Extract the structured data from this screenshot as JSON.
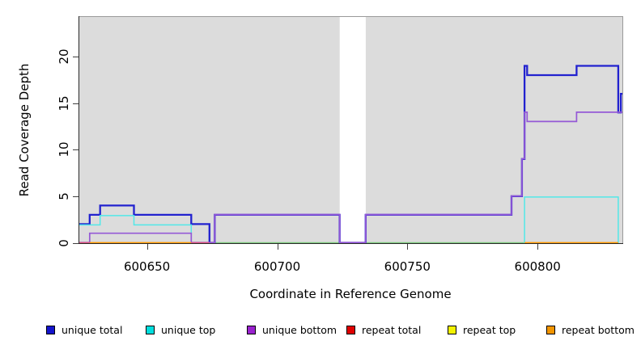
{
  "figure": {
    "background_color": "#ffffff",
    "plot_background_color": "#dcdcdc",
    "gap_band_color": "#ffffff"
  },
  "chart_data": {
    "type": "line",
    "subtype": "step-coverage",
    "title": "",
    "xlabel": "Coordinate in Reference Genome",
    "ylabel": "Read Coverage Depth",
    "xlim": [
      600623.7,
      600832.9
    ],
    "ylim": [
      0,
      24.3
    ],
    "x_ticks": [
      600650,
      600700,
      600750,
      600800
    ],
    "x_tick_labels": [
      "600650",
      "600700",
      "600750",
      "600800"
    ],
    "y_ticks": [
      0,
      5,
      10,
      15,
      20
    ],
    "y_tick_labels": [
      "0",
      "5",
      "10",
      "15",
      "20"
    ],
    "grid": "off",
    "plot_bg": "#dcdcdc",
    "gap_region": {
      "x_start": 600724,
      "x_end": 600734,
      "note": "white vertical band (no reference data)"
    },
    "legend_position": "bottom",
    "legend": [
      {
        "label": "unique total",
        "color": "#1414cc"
      },
      {
        "label": "unique top",
        "color": "#00dede"
      },
      {
        "label": "unique bottom",
        "color": "#9a22cf"
      },
      {
        "label": "repeat total",
        "color": "#e00000"
      },
      {
        "label": "repeat top",
        "color": "#f2f200"
      },
      {
        "label": "repeat bottom",
        "color": "#f29500"
      }
    ],
    "series": [
      {
        "name": "unique total",
        "line_color": "#2222cf",
        "step_points": [
          [
            600624,
            2
          ],
          [
            600628,
            3
          ],
          [
            600632,
            4
          ],
          [
            600645,
            3
          ],
          [
            600667,
            2
          ],
          [
            600674,
            0
          ],
          [
            600676,
            3
          ],
          [
            600724,
            0
          ],
          [
            600734,
            3
          ],
          [
            600790,
            5
          ],
          [
            600794,
            9
          ],
          [
            600795,
            19
          ],
          [
            600796,
            18
          ],
          [
            600815,
            19
          ],
          [
            600831,
            14
          ],
          [
            600832,
            16
          ],
          [
            600833,
            16
          ]
        ],
        "draw_segments": [
          [
            [
              600624,
              2
            ],
            [
              600628,
              3
            ],
            [
              600632,
              4
            ],
            [
              600645,
              3
            ],
            [
              600667,
              2
            ],
            [
              600674,
              0
            ],
            [
              600676,
              3
            ],
            [
              600724,
              0
            ],
            [
              600734,
              3
            ],
            [
              600790,
              5
            ],
            [
              600794,
              9
            ],
            [
              600795,
              19
            ],
            [
              600796,
              18
            ],
            [
              600815,
              19
            ],
            [
              600831,
              14
            ],
            [
              600832,
              16
            ],
            [
              600833,
              16
            ]
          ]
        ]
      },
      {
        "name": "unique top",
        "line_color": "#52e8e8",
        "step_points": [
          [
            600624,
            2
          ],
          [
            600632,
            3
          ],
          [
            600645,
            2
          ],
          [
            600667,
            0
          ],
          [
            600795,
            5
          ],
          [
            600831,
            0
          ],
          [
            600833,
            0
          ]
        ],
        "draw_segments": [
          [
            [
              600624,
              2
            ],
            [
              600632,
              3
            ],
            [
              600645,
              2
            ],
            [
              600667,
              0
            ]
          ],
          [
            [
              600795,
              0
            ],
            [
              600795,
              5
            ],
            [
              600831,
              5
            ],
            [
              600831,
              0
            ]
          ]
        ]
      },
      {
        "name": "unique bottom",
        "line_color": "#9559d6",
        "step_points": [
          [
            600624,
            0
          ],
          [
            600628,
            1
          ],
          [
            600667,
            0
          ],
          [
            600676,
            3
          ],
          [
            600724,
            0
          ],
          [
            600734,
            3
          ],
          [
            600790,
            5
          ],
          [
            600794,
            9
          ],
          [
            600795,
            14
          ],
          [
            600796,
            13
          ],
          [
            600815,
            14
          ],
          [
            600833,
            14
          ]
        ],
        "draw_segments": [
          [
            [
              600624,
              0
            ],
            [
              600628,
              1
            ],
            [
              600667,
              0
            ],
            [
              600676,
              3
            ],
            [
              600724,
              0
            ],
            [
              600734,
              3
            ],
            [
              600790,
              5
            ],
            [
              600794,
              9
            ],
            [
              600795,
              14
            ],
            [
              600796,
              13
            ],
            [
              600815,
              14
            ],
            [
              600833,
              14
            ]
          ]
        ]
      },
      {
        "name": "repeat total",
        "line_color": "#e2557f",
        "step_points": [
          [
            600624,
            0
          ],
          [
            600833,
            0
          ]
        ],
        "draw_segments": []
      },
      {
        "name": "repeat top",
        "line_color": "#e8e89c",
        "step_points": [
          [
            600624,
            0
          ],
          [
            600833,
            0
          ]
        ],
        "draw_segments": []
      },
      {
        "name": "repeat bottom",
        "line_color": "#ff9a00",
        "step_points": [
          [
            600624,
            0
          ],
          [
            600833,
            0
          ]
        ],
        "draw_segments": []
      }
    ],
    "zero_line_segments": [
      {
        "series": "repeat top",
        "color": "#e8e89c",
        "from": 600676,
        "to": 600795,
        "layer": "under",
        "dy": 1.2,
        "w": 1.1
      },
      {
        "series": "unique top + repeat top overlap",
        "color": "#7cc87c",
        "from": 600676,
        "to": 600724,
        "layer": "under",
        "dy": 0,
        "w": 1.6
      },
      {
        "series": "unique top + repeat top overlap",
        "color": "#7cc87c",
        "from": 600734,
        "to": 600795,
        "layer": "under",
        "dy": 0,
        "w": 1.6
      },
      {
        "series": "repeat total",
        "color": "#e2557f",
        "from": 600624,
        "to": 600628,
        "layer": "over",
        "dy": 0,
        "w": 1.6
      },
      {
        "series": "repeat bottom",
        "color": "#ff9a00",
        "from": 600628,
        "to": 600667,
        "layer": "over",
        "dy": 0,
        "w": 1.8
      },
      {
        "series": "repeat total",
        "color": "#e2557f",
        "from": 600667,
        "to": 600674,
        "layer": "over",
        "dy": 0,
        "w": 1.6
      },
      {
        "series": "repeat bottom",
        "color": "#ff9a00",
        "from": 600795,
        "to": 600831,
        "layer": "over",
        "dy": 0,
        "w": 1.8
      }
    ]
  }
}
